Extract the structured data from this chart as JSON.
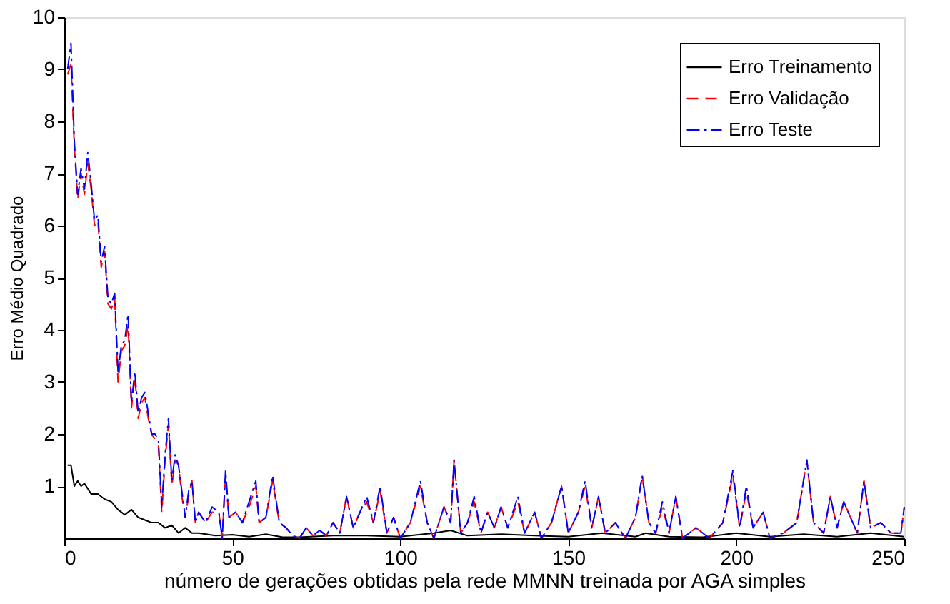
{
  "chart_data": {
    "type": "line",
    "xlabel": "número de gerações obtidas pela rede MMNN treinada por AGA simples",
    "ylabel": "Erro Médio Quadrado",
    "xlim": [
      0,
      250
    ],
    "xticks": [
      0,
      50,
      100,
      150,
      200,
      250
    ],
    "ylim": [
      0,
      10
    ],
    "yticks": [
      1,
      2,
      3,
      4,
      5,
      6,
      7,
      8,
      9,
      10
    ],
    "grid": false,
    "legend": "top right",
    "marker": "none",
    "series": [
      {
        "name": "Erro Treinamento",
        "color": "#000000",
        "line_style": "solid",
        "x": [
          1,
          2,
          3,
          4,
          5,
          6,
          8,
          10,
          12,
          14,
          16,
          18,
          20,
          22,
          24,
          26,
          28,
          30,
          32,
          34,
          36,
          38,
          40,
          45,
          50,
          55,
          60,
          65,
          70,
          80,
          90,
          100,
          110,
          115,
          120,
          130,
          140,
          150,
          160,
          170,
          173,
          180,
          190,
          200,
          210,
          220,
          230,
          240,
          250
        ],
        "values": [
          1.4,
          1.4,
          1.0,
          1.1,
          1.0,
          1.05,
          0.85,
          0.85,
          0.75,
          0.7,
          0.55,
          0.45,
          0.55,
          0.4,
          0.35,
          0.3,
          0.3,
          0.2,
          0.25,
          0.1,
          0.2,
          0.1,
          0.1,
          0.05,
          0.07,
          0.03,
          0.08,
          0.02,
          0.02,
          0.05,
          0.05,
          0.03,
          0.1,
          0.15,
          0.05,
          0.08,
          0.05,
          0.03,
          0.1,
          0.03,
          0.1,
          0.03,
          0.02,
          0.1,
          0.03,
          0.08,
          0.03,
          0.1,
          0.03
        ]
      },
      {
        "name": "Erro Validação",
        "color": "#ff0000",
        "line_style": "dashed",
        "x": [
          1,
          2,
          3,
          4,
          5,
          6,
          7,
          8,
          9,
          10,
          11,
          12,
          13,
          14,
          15,
          16,
          17,
          18,
          19,
          20,
          21,
          22,
          23,
          24,
          25,
          26,
          27,
          28,
          29,
          30,
          31,
          32,
          33,
          34,
          35,
          36,
          37,
          38,
          39,
          40,
          41,
          42,
          44,
          46,
          47,
          48,
          49,
          51,
          53,
          55,
          57,
          58,
          60,
          62,
          64,
          66,
          68,
          70,
          72,
          74,
          76,
          78,
          80,
          82,
          84,
          86,
          88,
          90,
          92,
          94,
          96,
          98,
          100,
          103,
          106,
          108,
          110,
          113,
          115,
          116,
          118,
          120,
          122,
          124,
          126,
          128,
          130,
          132,
          135,
          137,
          140,
          142,
          145,
          148,
          150,
          153,
          155,
          157,
          159,
          161,
          164,
          167,
          170,
          172,
          174,
          176,
          178,
          180,
          182,
          184,
          188,
          192,
          196,
          199,
          201,
          203,
          205,
          208,
          210,
          214,
          218,
          221,
          223,
          226,
          228,
          230,
          232,
          234,
          236,
          238,
          240,
          243,
          246,
          249,
          250
        ],
        "values": [
          8.9,
          9.1,
          7.5,
          6.5,
          7.0,
          6.6,
          7.2,
          6.7,
          6.0,
          6.1,
          5.2,
          5.5,
          4.5,
          4.4,
          4.6,
          3.0,
          3.6,
          3.7,
          4.1,
          2.5,
          3.1,
          2.3,
          2.6,
          2.7,
          2.3,
          2.0,
          1.9,
          1.8,
          0.5,
          1.5,
          2.2,
          1.0,
          1.5,
          1.4,
          0.8,
          0.4,
          0.8,
          1.1,
          0.3,
          0.5,
          0.4,
          0.3,
          0.5,
          0.5,
          0.0,
          1.2,
          0.4,
          0.5,
          0.3,
          0.6,
          1.0,
          0.3,
          0.4,
          1.1,
          0.3,
          0.2,
          0.05,
          0.0,
          0.2,
          0.05,
          0.15,
          0.05,
          0.3,
          0.1,
          0.8,
          0.2,
          0.5,
          0.7,
          0.3,
          0.9,
          0.1,
          0.4,
          0.0,
          0.3,
          1.0,
          0.3,
          0.0,
          0.6,
          0.3,
          1.5,
          0.1,
          0.3,
          0.7,
          0.1,
          0.5,
          0.2,
          0.6,
          0.2,
          0.7,
          0.1,
          0.5,
          0.0,
          0.3,
          1.0,
          0.1,
          0.5,
          1.0,
          0.2,
          0.8,
          0.1,
          0.3,
          0.0,
          0.4,
          1.2,
          0.3,
          0.1,
          0.6,
          0.1,
          0.8,
          0.0,
          0.2,
          0.0,
          0.3,
          1.2,
          0.2,
          0.9,
          0.2,
          0.5,
          0.0,
          0.1,
          0.3,
          1.5,
          0.3,
          0.1,
          0.8,
          0.2,
          0.7,
          0.4,
          0.1,
          1.1,
          0.2,
          0.3,
          0.1,
          0.1,
          0.6
        ]
      },
      {
        "name": "Erro Teste",
        "color": "#0000ff",
        "line_style": "dashdot",
        "x": [
          1,
          2,
          3,
          4,
          5,
          6,
          7,
          8,
          9,
          10,
          11,
          12,
          13,
          14,
          15,
          16,
          17,
          18,
          19,
          20,
          21,
          22,
          23,
          24,
          25,
          26,
          27,
          28,
          29,
          30,
          31,
          32,
          33,
          34,
          35,
          36,
          37,
          38,
          39,
          40,
          41,
          42,
          44,
          46,
          47,
          48,
          49,
          51,
          53,
          55,
          57,
          58,
          60,
          62,
          64,
          66,
          68,
          70,
          72,
          74,
          76,
          78,
          80,
          82,
          84,
          86,
          88,
          90,
          92,
          94,
          96,
          98,
          100,
          103,
          106,
          108,
          110,
          113,
          115,
          116,
          118,
          120,
          122,
          124,
          126,
          128,
          130,
          132,
          135,
          137,
          140,
          142,
          145,
          148,
          150,
          153,
          155,
          157,
          159,
          161,
          164,
          167,
          170,
          172,
          174,
          176,
          178,
          180,
          182,
          184,
          188,
          192,
          196,
          199,
          201,
          203,
          205,
          208,
          210,
          214,
          218,
          221,
          223,
          226,
          228,
          230,
          232,
          234,
          236,
          238,
          240,
          243,
          246,
          249,
          250
        ],
        "values": [
          9.0,
          9.5,
          7.6,
          6.6,
          7.1,
          6.7,
          7.4,
          6.8,
          6.1,
          6.2,
          5.3,
          5.6,
          4.6,
          4.5,
          4.7,
          3.2,
          3.7,
          3.8,
          4.3,
          2.6,
          3.2,
          2.4,
          2.7,
          2.8,
          2.4,
          2.0,
          2.0,
          1.9,
          0.6,
          1.6,
          2.3,
          1.1,
          1.6,
          1.4,
          0.9,
          0.4,
          0.9,
          1.1,
          0.3,
          0.5,
          0.4,
          0.3,
          0.6,
          0.5,
          0.0,
          1.3,
          0.4,
          0.5,
          0.3,
          0.7,
          1.1,
          0.3,
          0.4,
          1.2,
          0.3,
          0.2,
          0.05,
          0.0,
          0.2,
          0.05,
          0.15,
          0.05,
          0.3,
          0.1,
          0.8,
          0.2,
          0.5,
          0.8,
          0.3,
          1.0,
          0.1,
          0.4,
          0.0,
          0.3,
          1.1,
          0.3,
          0.0,
          0.6,
          0.3,
          1.5,
          0.1,
          0.3,
          0.8,
          0.1,
          0.5,
          0.2,
          0.6,
          0.2,
          0.8,
          0.1,
          0.5,
          0.0,
          0.3,
          1.0,
          0.1,
          0.5,
          1.1,
          0.2,
          0.8,
          0.1,
          0.3,
          0.0,
          0.4,
          1.2,
          0.3,
          0.1,
          0.7,
          0.1,
          0.8,
          0.0,
          0.2,
          0.0,
          0.3,
          1.3,
          0.2,
          1.0,
          0.2,
          0.5,
          0.0,
          0.1,
          0.3,
          1.5,
          0.3,
          0.1,
          0.8,
          0.2,
          0.7,
          0.4,
          0.1,
          1.1,
          0.2,
          0.3,
          0.1,
          0.1,
          0.6
        ]
      }
    ]
  }
}
